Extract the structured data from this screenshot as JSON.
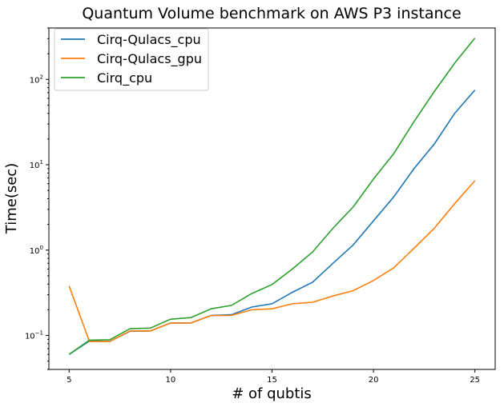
{
  "chart_data": {
    "type": "line",
    "title": "Quantum Volume benchmark on AWS P3 instance",
    "xlabel": "# of qubtis",
    "ylabel": "Time(sec)",
    "y_scale": "log",
    "xlim": [
      4.0,
      26.0
    ],
    "ylim": [
      0.04,
      400
    ],
    "x_ticks": [
      5,
      10,
      15,
      20,
      25
    ],
    "x_tick_labels": [
      "5",
      "10",
      "15",
      "20",
      "25"
    ],
    "y_ticks": [
      0.1,
      1,
      10,
      100
    ],
    "y_tick_labels": [
      {
        "base": "10",
        "exp": "−1"
      },
      {
        "base": "10",
        "exp": "0"
      },
      {
        "base": "10",
        "exp": "1"
      },
      {
        "base": "10",
        "exp": "2"
      }
    ],
    "grid": false,
    "legend_position": "top-left",
    "x": [
      5,
      6,
      7,
      8,
      9,
      10,
      11,
      12,
      13,
      14,
      15,
      16,
      17,
      18,
      19,
      20,
      21,
      22,
      23,
      24,
      25
    ],
    "series": [
      {
        "name": "Cirq-Qulacs_cpu",
        "color": "#1f77b4",
        "values": [
          0.06,
          0.086,
          0.085,
          0.112,
          0.113,
          0.14,
          0.14,
          0.172,
          0.175,
          0.215,
          0.235,
          0.32,
          0.42,
          0.7,
          1.15,
          2.2,
          4.2,
          9.0,
          17.5,
          40,
          75
        ]
      },
      {
        "name": "Cirq-Qulacs_gpu",
        "color": "#ff7f0e",
        "values": [
          0.38,
          0.085,
          0.085,
          0.113,
          0.113,
          0.14,
          0.14,
          0.171,
          0.172,
          0.2,
          0.205,
          0.235,
          0.245,
          0.29,
          0.335,
          0.44,
          0.62,
          1.05,
          1.8,
          3.5,
          6.5
        ]
      },
      {
        "name": "Cirq_cpu",
        "color": "#2ca02c",
        "values": [
          0.06,
          0.088,
          0.089,
          0.12,
          0.122,
          0.155,
          0.162,
          0.205,
          0.225,
          0.31,
          0.395,
          0.6,
          0.95,
          1.8,
          3.2,
          6.8,
          13.5,
          32,
          72,
          155,
          305
        ]
      }
    ]
  }
}
